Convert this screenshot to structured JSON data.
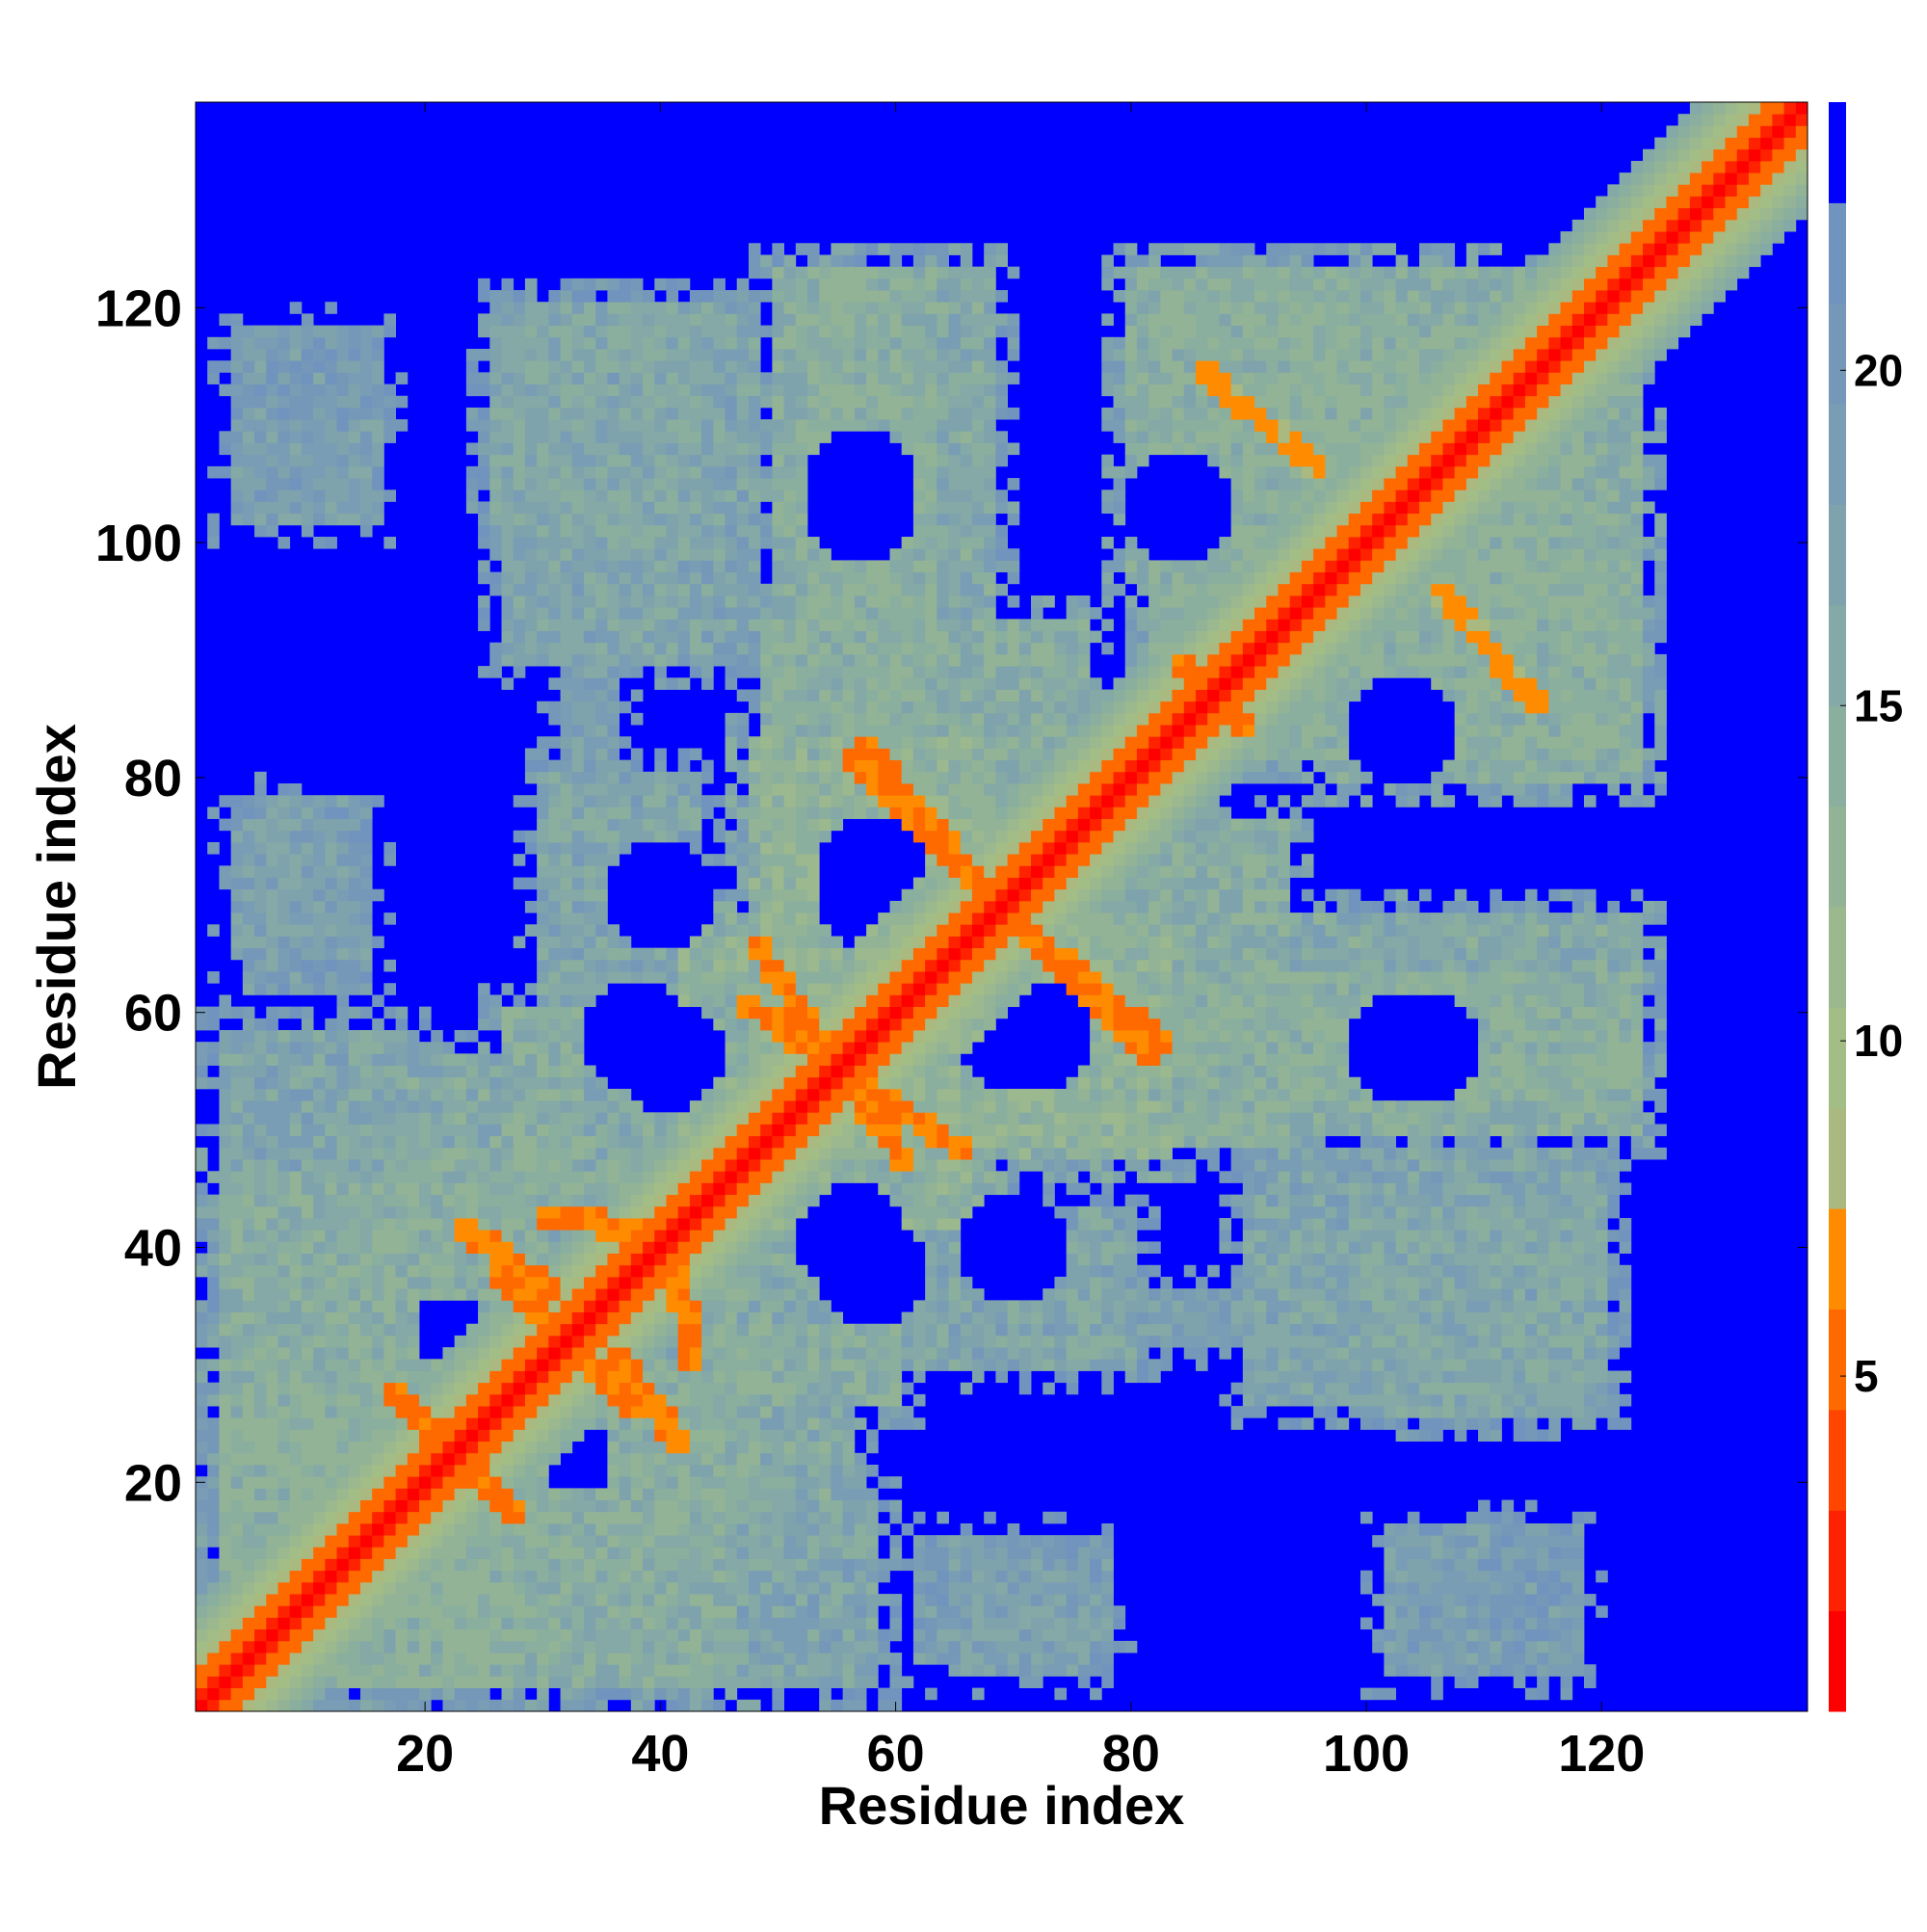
{
  "chart_data": {
    "type": "heatmap",
    "title": "",
    "xlabel": "Residue index",
    "ylabel": "Residue index",
    "xlim": [
      0.5,
      137.5
    ],
    "ylim": [
      0.5,
      137.5
    ],
    "x_ticks": [
      20,
      40,
      60,
      80,
      100,
      120
    ],
    "y_ticks": [
      20,
      40,
      60,
      80,
      100,
      120
    ],
    "x_tick_labels": [
      "20",
      "40",
      "60",
      "80",
      "100",
      "120"
    ],
    "y_tick_labels": [
      "20",
      "40",
      "60",
      "80",
      "100",
      "120"
    ],
    "n_residues": 137,
    "value_description": "pairwise residue distance; symmetric map",
    "colorbar": {
      "range": [
        0,
        24
      ],
      "ticks": [
        5,
        10,
        15,
        20
      ],
      "tick_labels": [
        "5",
        "10",
        "15",
        "20"
      ],
      "levels": [
        {
          "min": 0,
          "max": 1.5,
          "color": "#ff0000"
        },
        {
          "min": 1.5,
          "max": 3.0,
          "color": "#ff2200"
        },
        {
          "min": 3.0,
          "max": 4.5,
          "color": "#ff4500"
        },
        {
          "min": 4.5,
          "max": 6.0,
          "color": "#ff6a00"
        },
        {
          "min": 6.0,
          "max": 7.5,
          "color": "#ff8c00"
        },
        {
          "min": 7.5,
          "max": 9.0,
          "color": "#aab97f"
        },
        {
          "min": 9.0,
          "max": 10.5,
          "color": "#a3bd86"
        },
        {
          "min": 10.5,
          "max": 12.0,
          "color": "#9cb88e"
        },
        {
          "min": 12.0,
          "max": 13.5,
          "color": "#92b396"
        },
        {
          "min": 13.5,
          "max": 15.0,
          "color": "#8aaf9e"
        },
        {
          "min": 15.0,
          "max": 16.5,
          "color": "#84a9a6"
        },
        {
          "min": 16.5,
          "max": 18.0,
          "color": "#7fa3ac"
        },
        {
          "min": 18.0,
          "max": 19.5,
          "color": "#799db4"
        },
        {
          "min": 19.5,
          "max": 21.0,
          "color": "#7598b9"
        },
        {
          "min": 21.0,
          "max": 22.5,
          "color": "#7094bd"
        },
        {
          "min": 22.5,
          "max": 24.0,
          "color": "#0000ff"
        }
      ]
    },
    "diagonal_band_width": 1.5,
    "near_diagonal_band_width": 3.5,
    "contact_regions": [
      {
        "x": [
          1,
          30
        ],
        "y": [
          1,
          48
        ],
        "level": 15
      },
      {
        "x": [
          10,
          58
        ],
        "y": [
          15,
          50
        ],
        "level": 16
      },
      {
        "x": [
          1,
          22
        ],
        "y": [
          33,
          48
        ],
        "level": 15
      },
      {
        "x": [
          20,
          60
        ],
        "y": [
          1,
          20
        ],
        "level": 17
      },
      {
        "x": [
          28,
          45
        ],
        "y": [
          55,
          82
        ],
        "level": 17
      },
      {
        "x": [
          40,
          62
        ],
        "y": [
          25,
          35
        ],
        "level": 15
      },
      {
        "x": [
          46,
          70
        ],
        "y": [
          40,
          85
        ],
        "level": 14
      },
      {
        "x": [
          60,
          98
        ],
        "y": [
          30,
          38
        ],
        "level": 18
      },
      {
        "x": [
          65,
          95
        ],
        "y": [
          47,
          78
        ],
        "level": 15
      },
      {
        "x": [
          85,
          125
        ],
        "y": [
          50,
          70
        ],
        "level": 16
      },
      {
        "x": [
          98,
          122
        ],
        "y": [
          24,
          45
        ],
        "level": 17
      },
      {
        "x": [
          80,
          120
        ],
        "y": [
          80,
          125
        ],
        "level": 15
      },
      {
        "x": [
          95,
          125
        ],
        "y": [
          78,
          100
        ],
        "level": 15
      },
      {
        "x": [
          48,
          65
        ],
        "y": [
          80,
          125
        ],
        "level": 15
      },
      {
        "x": [
          25,
          50
        ],
        "y": [
          88,
          122
        ],
        "level": 17
      },
      {
        "x": [
          2,
          15
        ],
        "y": [
          63,
          78
        ],
        "level": 18
      },
      {
        "x": [
          2,
          18
        ],
        "y": [
          100,
          112
        ],
        "level": 19
      },
      {
        "x": [
          60,
          80
        ],
        "y": [
          3,
          17
        ],
        "level": 19
      },
      {
        "x": [
          100,
          120
        ],
        "y": [
          2,
          18
        ],
        "level": 19
      }
    ],
    "holes": [
      {
        "cx": 57,
        "cy": 105,
        "r": 5
      },
      {
        "cx": 84,
        "cy": 103,
        "r": 5
      },
      {
        "cx": 58,
        "cy": 72,
        "r": 5
      },
      {
        "cx": 70,
        "cy": 58,
        "r": 5
      },
      {
        "cx": 38,
        "cy": 58,
        "r": 5
      },
      {
        "cx": 103,
        "cy": 57,
        "r": 5
      },
      {
        "cx": 103,
        "cy": 84,
        "r": 4
      },
      {
        "cx": 56,
        "cy": 41,
        "r": 5
      },
      {
        "cx": 70,
        "cy": 40,
        "r": 5
      },
      {
        "cx": 33,
        "cy": 22,
        "r": 3
      }
    ],
    "contact_lines": [
      {
        "from": [
          54,
          57
        ],
        "to": [
          61,
          47
        ],
        "level": 6
      },
      {
        "from": [
          57,
          83
        ],
        "to": [
          68,
          70
        ],
        "level": 6
      },
      {
        "from": [
          72,
          66
        ],
        "to": [
          82,
          56
        ],
        "level": 6
      },
      {
        "from": [
          48,
          66
        ],
        "to": [
          54,
          57
        ],
        "level": 6
      },
      {
        "from": [
          22,
          23
        ],
        "to": [
          28,
          17
        ],
        "level": 6
      },
      {
        "from": [
          17,
          28
        ],
        "to": [
          23,
          22
        ],
        "level": 6
      },
      {
        "from": [
          26,
          38
        ],
        "to": [
          34,
          30
        ],
        "level": 6
      },
      {
        "from": [
          30,
          43
        ],
        "to": [
          40,
          41
        ],
        "level": 6
      },
      {
        "from": [
          36,
          31
        ],
        "to": [
          42,
          23
        ],
        "level": 6
      },
      {
        "from": [
          86,
          88
        ],
        "to": [
          90,
          84
        ],
        "level": 6
      },
      {
        "from": [
          106,
          96
        ],
        "to": [
          115,
          86
        ],
        "level": 7
      },
      {
        "from": [
          96,
          106
        ],
        "to": [
          86,
          115
        ],
        "level": 7
      }
    ]
  }
}
